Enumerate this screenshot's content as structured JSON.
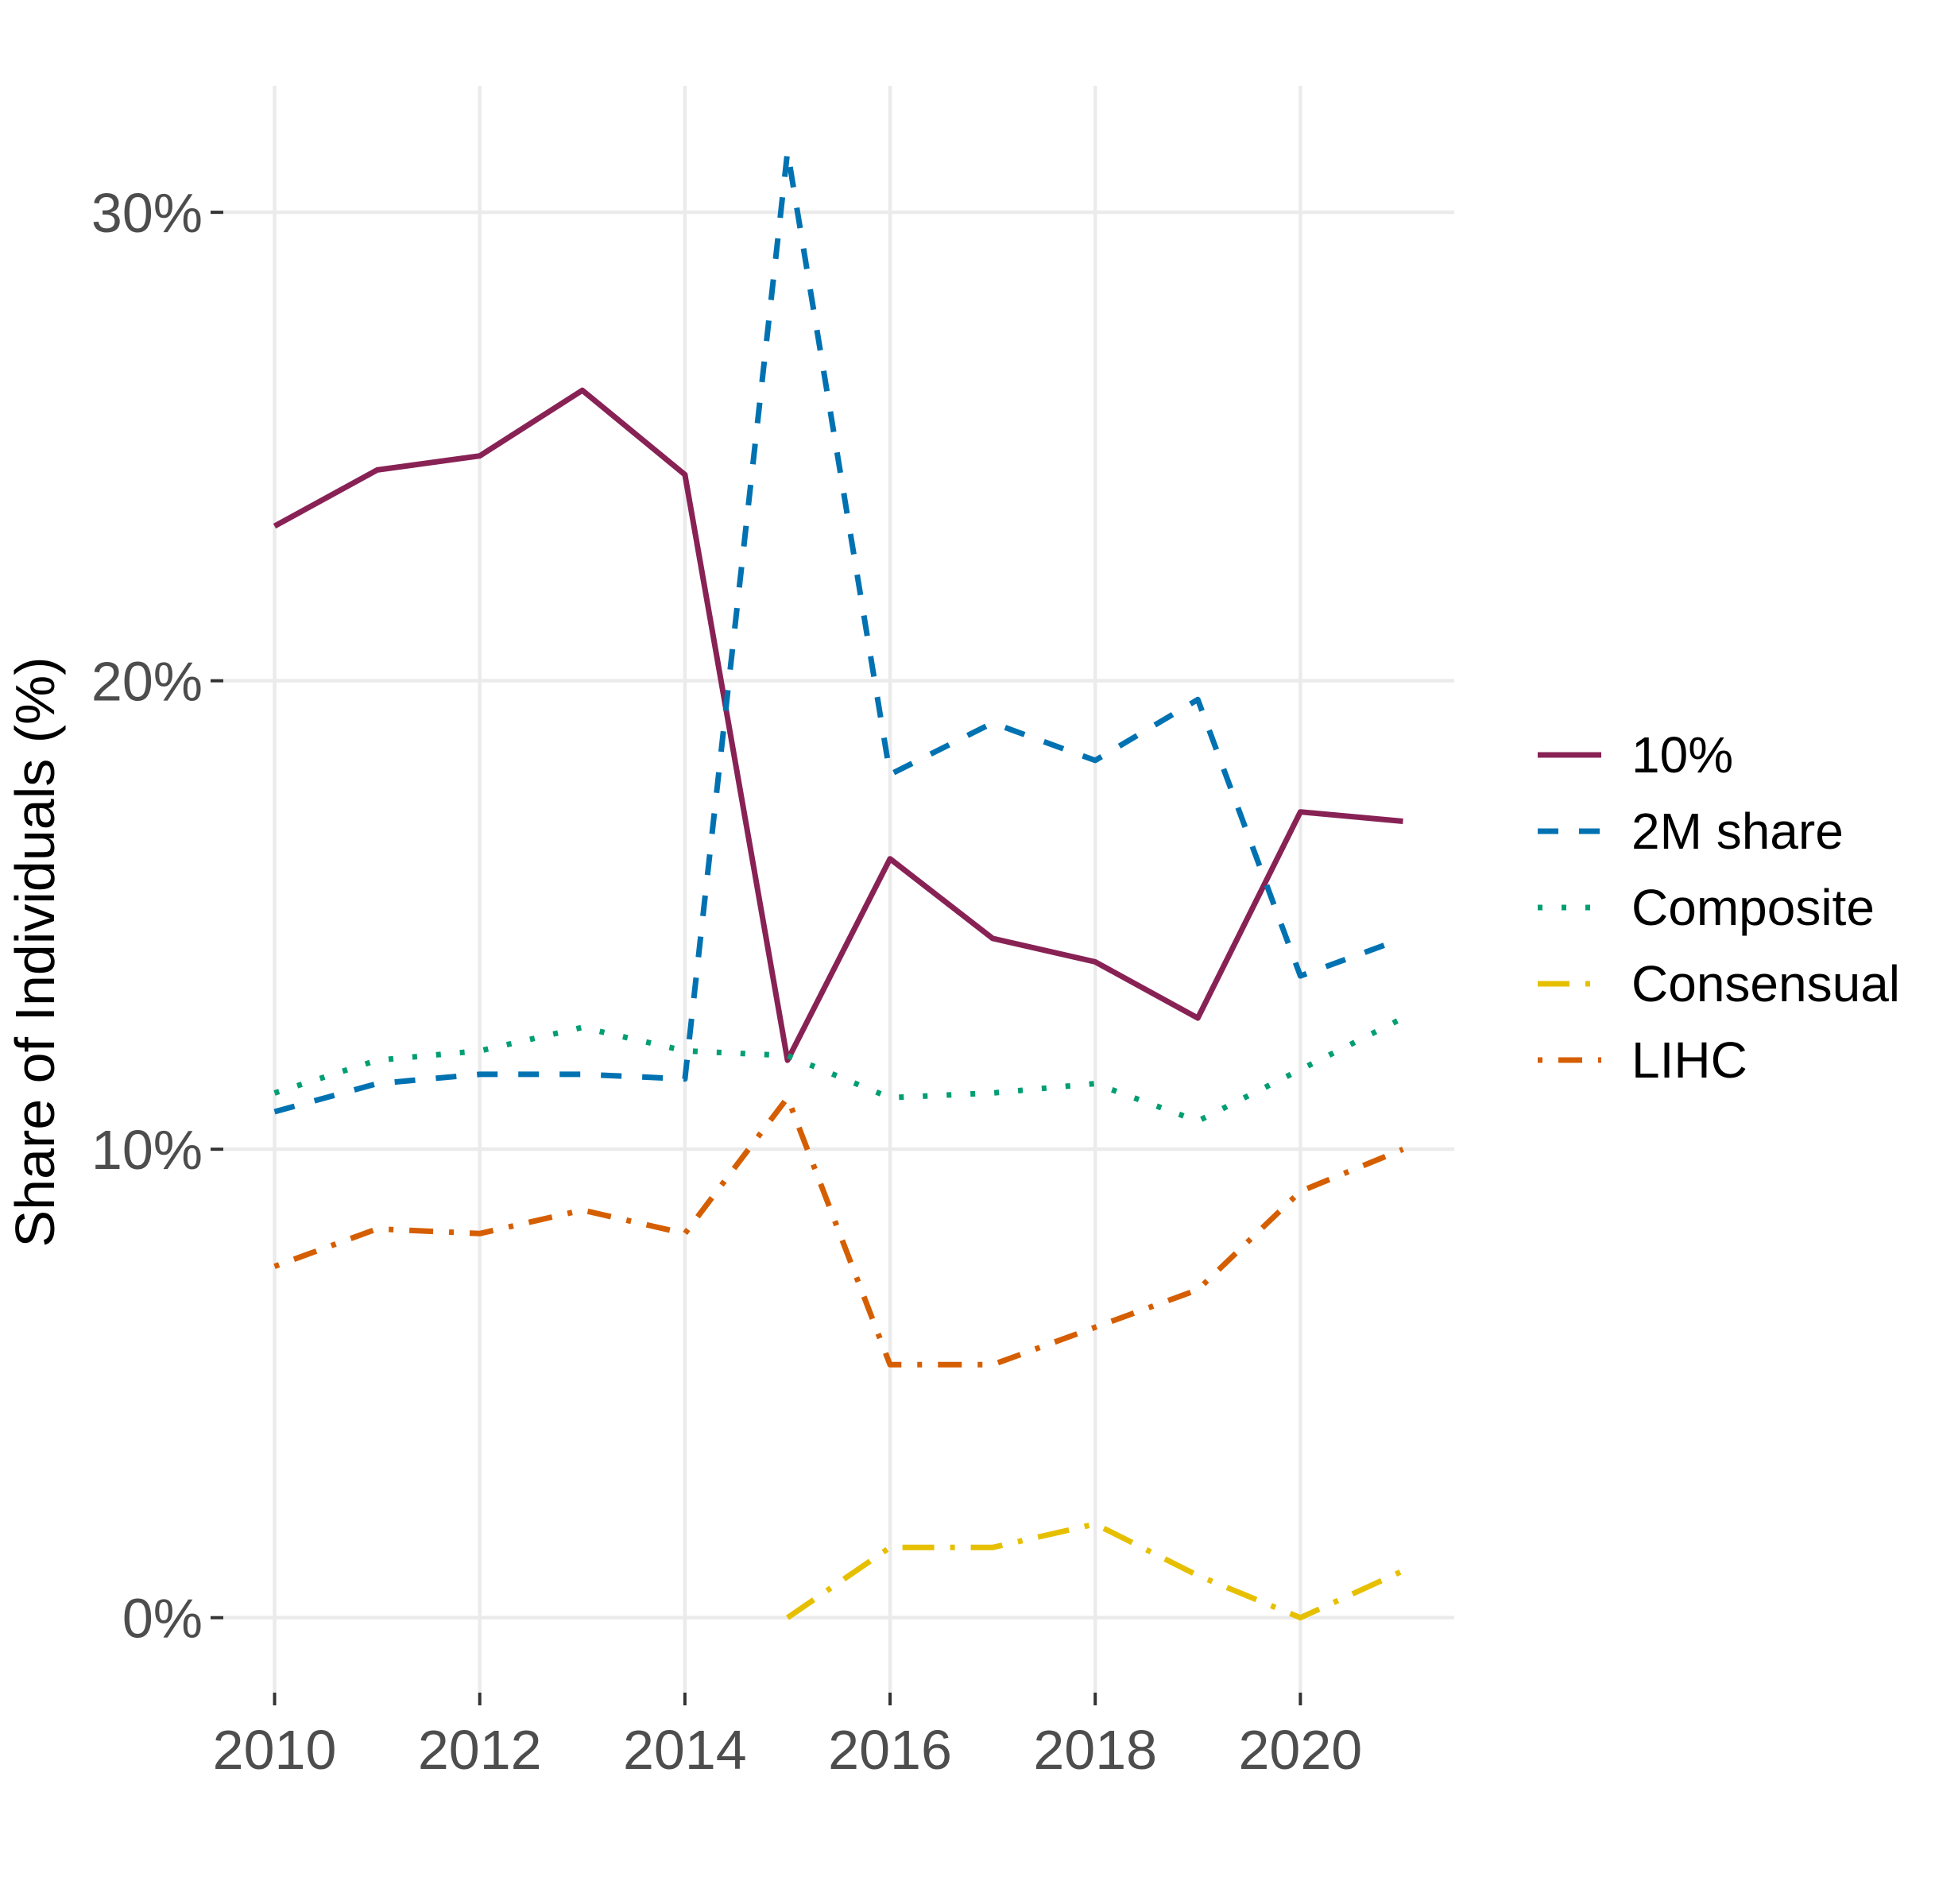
{
  "chart_data": {
    "type": "line",
    "title": "",
    "xlabel": "",
    "ylabel": "Share of Individuals (%)",
    "x_ticks": [
      "2010",
      "2012",
      "2014",
      "2016",
      "2018",
      "2020"
    ],
    "y_ticks": [
      "0%",
      "10%",
      "20%",
      "30%"
    ],
    "xlim": [
      2009.5,
      2021.5
    ],
    "ylim": [
      -1.6,
      32.7
    ],
    "grid": true,
    "legend_position": "right",
    "series": [
      {
        "name": "10%",
        "color": "#882255",
        "dash": "solid",
        "x": [
          2010,
          2011,
          2012,
          2013,
          2014,
          2015,
          2016,
          2017,
          2018,
          2019,
          2020,
          2021
        ],
        "y": [
          23.3,
          24.5,
          24.8,
          26.2,
          24.4,
          11.9,
          16.2,
          14.5,
          14.0,
          12.8,
          17.2,
          17.0
        ]
      },
      {
        "name": "2M share",
        "color": "#0072B2",
        "dash": "dashed",
        "x": [
          2010,
          2011,
          2012,
          2013,
          2014,
          2015,
          2016,
          2017,
          2018,
          2019,
          2020,
          2021
        ],
        "y": [
          10.8,
          11.4,
          11.6,
          11.6,
          11.5,
          31.3,
          18.0,
          19.1,
          18.3,
          19.6,
          13.7,
          14.5
        ]
      },
      {
        "name": "Composite",
        "color": "#009E73",
        "dash": "dotted",
        "x": [
          2010,
          2011,
          2012,
          2013,
          2014,
          2015,
          2016,
          2017,
          2018,
          2019,
          2020,
          2021
        ],
        "y": [
          11.2,
          11.9,
          12.1,
          12.6,
          12.1,
          12.0,
          11.1,
          11.2,
          11.4,
          10.6,
          11.7,
          12.8
        ]
      },
      {
        "name": "Consensual",
        "color": "#E6C000",
        "dash": "longdash-dot",
        "x": [
          2015,
          2016,
          2017,
          2018,
          2019,
          2020,
          2021
        ],
        "y": [
          0.0,
          1.5,
          1.5,
          2.0,
          0.9,
          0.0,
          1.0
        ]
      },
      {
        "name": "LIHC",
        "color": "#D55E00",
        "dash": "dotdash",
        "x": [
          2010,
          2011,
          2012,
          2013,
          2014,
          2015,
          2016,
          2017,
          2018,
          2019,
          2020,
          2021
        ],
        "y": [
          7.5,
          8.3,
          8.2,
          8.7,
          8.2,
          11.1,
          5.4,
          5.4,
          6.2,
          7.0,
          9.1,
          10.0
        ]
      }
    ]
  }
}
